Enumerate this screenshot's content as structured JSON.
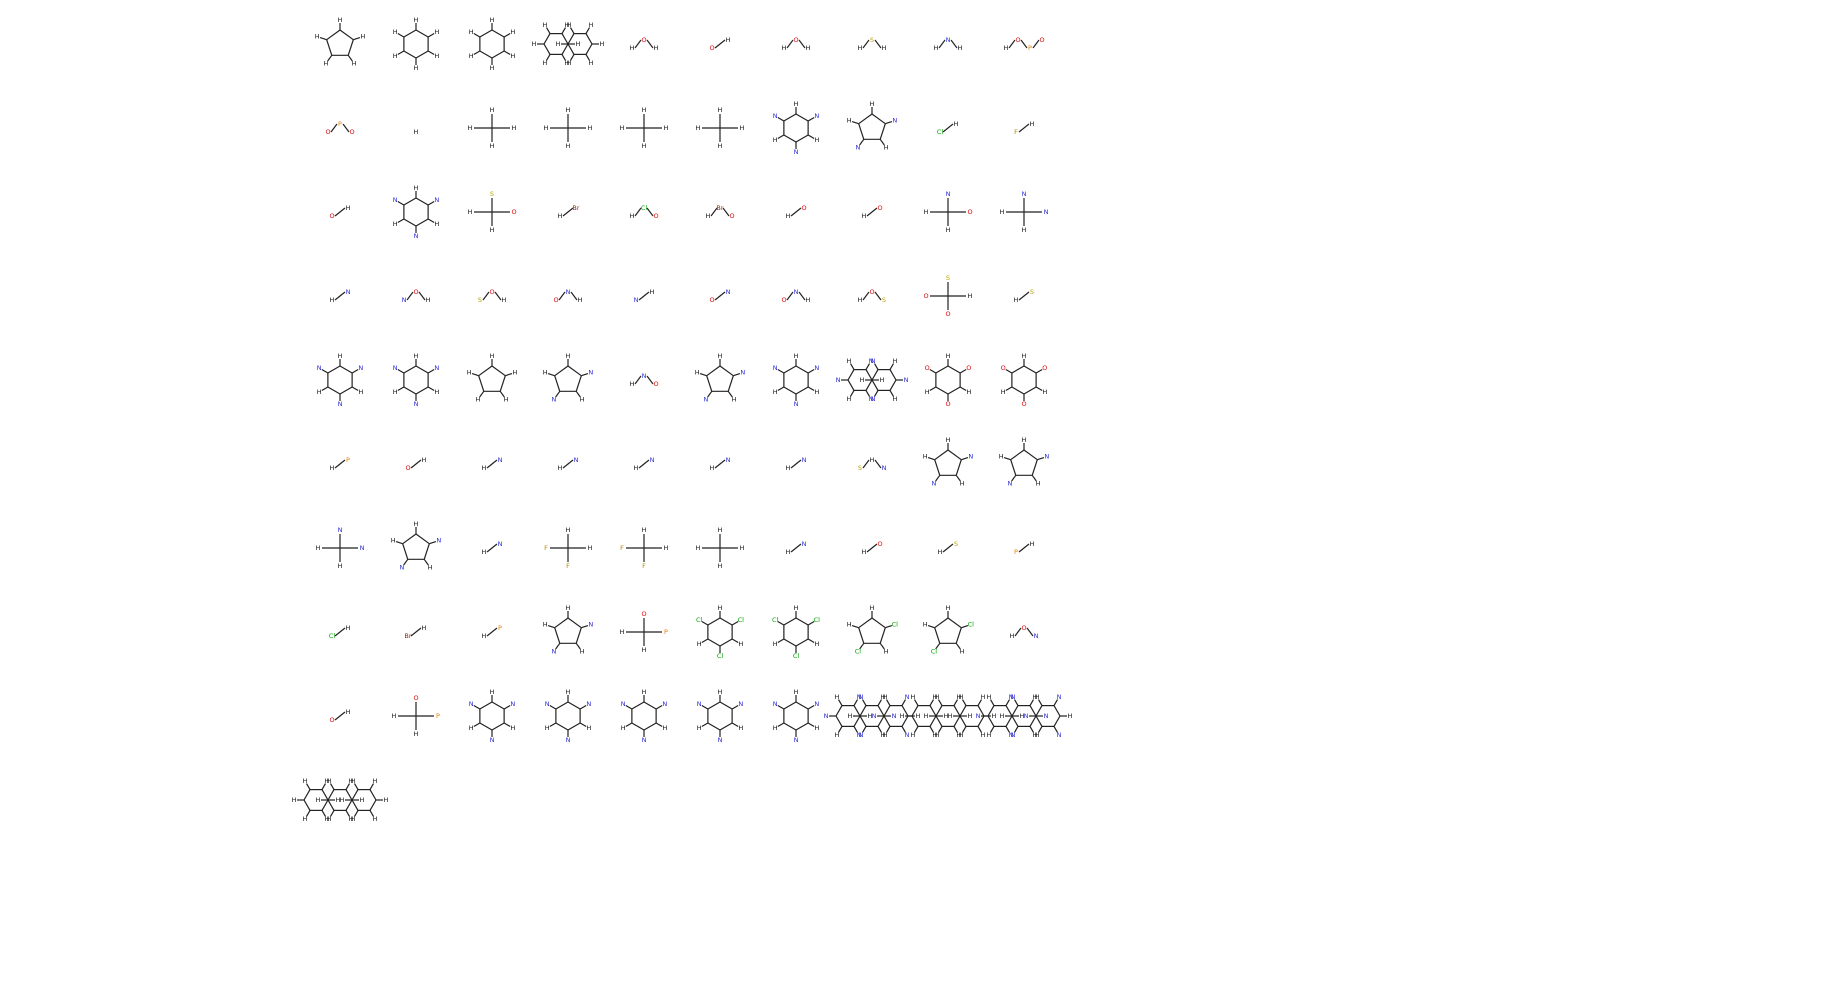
{
  "colors": {
    "bond": "#222222",
    "H": "#111111",
    "C": "#111111",
    "O": "#e00000",
    "N": "#2b2bd6",
    "S": "#b8a100",
    "P": "#e08000",
    "F": "#b08800",
    "Cl": "#00a000",
    "Br": "#8a2a0a"
  },
  "rows": [
    [
      {
        "name": "cyclopentane",
        "shape": "ring5",
        "labels": [
          "H"
        ]
      },
      {
        "name": "cyclohexane",
        "shape": "ring6",
        "labels": [
          "H"
        ]
      },
      {
        "name": "benzene",
        "shape": "ring6",
        "labels": [
          "H"
        ]
      },
      {
        "name": "naphthalene",
        "shape": "ring6x2",
        "labels": [
          "H"
        ]
      },
      {
        "name": "methanol",
        "shape": "chain",
        "labels": [
          "H",
          "O",
          "H"
        ]
      },
      {
        "name": "acetone",
        "shape": "chain",
        "labels": [
          "O",
          "H"
        ]
      },
      {
        "name": "acetic-acid",
        "shape": "chain",
        "labels": [
          "H",
          "O",
          "H"
        ]
      },
      {
        "name": "methanethiol",
        "shape": "chain",
        "labels": [
          "H",
          "S",
          "H"
        ]
      },
      {
        "name": "ammonia",
        "shape": "chain",
        "labels": [
          "H",
          "N",
          "H"
        ]
      },
      {
        "name": "methyl-phosphate",
        "shape": "chain",
        "labels": [
          "H",
          "O",
          "P",
          "O"
        ]
      }
    ],
    [
      {
        "name": "methylphosphonate",
        "shape": "chain",
        "labels": [
          "O",
          "P",
          "O"
        ]
      },
      {
        "name": "ethane",
        "shape": "chain",
        "labels": [
          "H"
        ]
      },
      {
        "name": "isobutane",
        "shape": "branch",
        "labels": [
          "H"
        ]
      },
      {
        "name": "neopentane",
        "shape": "branch",
        "labels": [
          "H"
        ]
      },
      {
        "name": "branched-alkane-a",
        "shape": "branch",
        "labels": [
          "H"
        ]
      },
      {
        "name": "branched-alkane-b",
        "shape": "branch",
        "labels": [
          "H"
        ]
      },
      {
        "name": "pyridine",
        "shape": "ring6",
        "labels": [
          "H",
          "N"
        ]
      },
      {
        "name": "pyrrolidine",
        "shape": "ring5",
        "labels": [
          "H",
          "N"
        ]
      },
      {
        "name": "chloromethane",
        "shape": "chain",
        "labels": [
          "Cl",
          "H"
        ]
      },
      {
        "name": "fluoromethane",
        "shape": "chain",
        "labels": [
          "F",
          "H"
        ]
      }
    ],
    [
      {
        "name": "formaldehyde",
        "shape": "chain",
        "labels": [
          "O",
          "H"
        ]
      },
      {
        "name": "piperidine",
        "shape": "ring6",
        "labels": [
          "H",
          "N"
        ]
      },
      {
        "name": "dimethyl-sulfone",
        "shape": "branch",
        "labels": [
          "H",
          "S",
          "O"
        ]
      },
      {
        "name": "bromomethane",
        "shape": "chain",
        "labels": [
          "H",
          "Br"
        ]
      },
      {
        "name": "acetyl-chloride",
        "shape": "chain",
        "labels": [
          "H",
          "Cl",
          "O"
        ]
      },
      {
        "name": "acetyl-bromide",
        "shape": "chain",
        "labels": [
          "H",
          "Br",
          "O"
        ]
      },
      {
        "name": "dimethyl-ether",
        "shape": "chain",
        "labels": [
          "H",
          "O"
        ]
      },
      {
        "name": "diethyl-ether",
        "shape": "chain",
        "labels": [
          "H",
          "O"
        ]
      },
      {
        "name": "dimethylacetamide",
        "shape": "branch",
        "labels": [
          "H",
          "N",
          "O"
        ]
      },
      {
        "name": "acetone-imine",
        "shape": "branch",
        "labels": [
          "H",
          "N"
        ]
      }
    ],
    [
      {
        "name": "azomethane",
        "shape": "chain",
        "labels": [
          "H",
          "N"
        ]
      },
      {
        "name": "methyl-cyanate",
        "shape": "chain",
        "labels": [
          "N",
          "O",
          "H"
        ]
      },
      {
        "name": "thioformate",
        "shape": "chain",
        "labels": [
          "S",
          "O",
          "H"
        ]
      },
      {
        "name": "nitric-acid",
        "shape": "chain",
        "labels": [
          "O",
          "N",
          "H"
        ]
      },
      {
        "name": "hydrogen-cyanide",
        "shape": "chain",
        "labels": [
          "N",
          "H"
        ]
      },
      {
        "name": "nitrite",
        "shape": "chain",
        "labels": [
          "O",
          "N"
        ]
      },
      {
        "name": "nitroxyl",
        "shape": "chain",
        "labels": [
          "O",
          "N",
          "H"
        ]
      },
      {
        "name": "sulfurous-acid",
        "shape": "chain",
        "labels": [
          "H",
          "O",
          "S"
        ]
      },
      {
        "name": "dimethyl-sulfoxide",
        "shape": "branch",
        "labels": [
          "O",
          "S",
          "H"
        ]
      },
      {
        "name": "dimethyl-disulfide",
        "shape": "chain",
        "labels": [
          "H",
          "S"
        ]
      }
    ],
    [
      {
        "name": "hexahydropyrimidine",
        "shape": "ring6",
        "labels": [
          "H",
          "N"
        ]
      },
      {
        "name": "pyrimidine",
        "shape": "ring6",
        "labels": [
          "H",
          "N"
        ]
      },
      {
        "name": "cyclopentadiene",
        "shape": "ring5",
        "labels": [
          "H"
        ]
      },
      {
        "name": "pyrrole-2h",
        "shape": "ring5",
        "labels": [
          "H",
          "N"
        ]
      },
      {
        "name": "acetimidate",
        "shape": "chain",
        "labels": [
          "H",
          "N",
          "O"
        ]
      },
      {
        "name": "triazole",
        "shape": "ring5",
        "labels": [
          "H",
          "N"
        ]
      },
      {
        "name": "triazine",
        "shape": "ring6",
        "labels": [
          "H",
          "N"
        ]
      },
      {
        "name": "pyrimidopyrimidine",
        "shape": "ring6x2",
        "labels": [
          "H",
          "N"
        ]
      },
      {
        "name": "phenol",
        "shape": "ring6",
        "labels": [
          "H",
          "O"
        ]
      },
      {
        "name": "catechol",
        "shape": "ring6",
        "labels": [
          "H",
          "O"
        ]
      }
    ],
    [
      {
        "name": "methylphosphonium",
        "shape": "chain",
        "labels": [
          "H",
          "P"
        ]
      },
      {
        "name": "formate",
        "shape": "chain",
        "labels": [
          "O",
          "H"
        ]
      },
      {
        "name": "ammonium-a",
        "shape": "chain",
        "labels": [
          "H",
          "N"
        ]
      },
      {
        "name": "ammonium-b",
        "shape": "chain",
        "labels": [
          "H",
          "N"
        ]
      },
      {
        "name": "ammonium-c",
        "shape": "chain",
        "labels": [
          "H",
          "N"
        ]
      },
      {
        "name": "diazene",
        "shape": "chain",
        "labels": [
          "H",
          "N"
        ]
      },
      {
        "name": "methylamine",
        "shape": "chain",
        "labels": [
          "H",
          "N"
        ]
      },
      {
        "name": "thioformamide",
        "shape": "chain",
        "labels": [
          "S",
          "H",
          "N"
        ]
      },
      {
        "name": "aminocyclopentadiene",
        "shape": "ring5",
        "labels": [
          "H",
          "N"
        ]
      },
      {
        "name": "diaminopyrrole",
        "shape": "ring5",
        "labels": [
          "H",
          "N"
        ]
      }
    ],
    [
      {
        "name": "enamine",
        "shape": "branch",
        "labels": [
          "H",
          "N"
        ]
      },
      {
        "name": "tetraaminotriazolium",
        "shape": "ring5",
        "labels": [
          "H",
          "N"
        ]
      },
      {
        "name": "formamidine",
        "shape": "chain",
        "labels": [
          "H",
          "N"
        ]
      },
      {
        "name": "fluoroform",
        "shape": "branch",
        "labels": [
          "F",
          "H"
        ]
      },
      {
        "name": "difluoromethane",
        "shape": "branch",
        "labels": [
          "F",
          "H"
        ]
      },
      {
        "name": "methane",
        "shape": "branch",
        "labels": [
          "H"
        ]
      },
      {
        "name": "ammonia-b",
        "shape": "chain",
        "labels": [
          "H",
          "N"
        ]
      },
      {
        "name": "water",
        "shape": "chain",
        "labels": [
          "H",
          "O"
        ]
      },
      {
        "name": "hydrogen-sulfide",
        "shape": "chain",
        "labels": [
          "H",
          "S"
        ]
      },
      {
        "name": "phosphine",
        "shape": "chain",
        "labels": [
          "P",
          "H"
        ]
      }
    ],
    [
      {
        "name": "hydrogen-chloride",
        "shape": "chain",
        "labels": [
          "Cl",
          "H"
        ]
      },
      {
        "name": "hydrogen-bromide",
        "shape": "chain",
        "labels": [
          "Br",
          "H"
        ]
      },
      {
        "name": "phosphine-b",
        "shape": "chain",
        "labels": [
          "H",
          "P"
        ]
      },
      {
        "name": "triazoline",
        "shape": "ring5",
        "labels": [
          "H",
          "N"
        ]
      },
      {
        "name": "methylphosphonic-acid",
        "shape": "branch",
        "labels": [
          "H",
          "O",
          "P"
        ]
      },
      {
        "name": "chlorobenzene",
        "shape": "ring6",
        "labels": [
          "H",
          "Cl"
        ]
      },
      {
        "name": "dichlorobenzene",
        "shape": "ring6",
        "labels": [
          "H",
          "Cl"
        ]
      },
      {
        "name": "chlorocyclopentadiene",
        "shape": "ring5",
        "labels": [
          "H",
          "Cl"
        ]
      },
      {
        "name": "dichlorocyclopentadiene",
        "shape": "ring5",
        "labels": [
          "H",
          "Cl"
        ]
      },
      {
        "name": "nitrous-acid",
        "shape": "chain",
        "labels": [
          "H",
          "O",
          "N"
        ]
      }
    ],
    [
      {
        "name": "formic-acid",
        "shape": "chain",
        "labels": [
          "O",
          "H"
        ]
      },
      {
        "name": "methylphosphonate-ester",
        "shape": "branch",
        "labels": [
          "H",
          "O",
          "P"
        ]
      },
      {
        "name": "aniline",
        "shape": "ring6",
        "labels": [
          "H",
          "N"
        ]
      },
      {
        "name": "triaminobenzene",
        "shape": "ring6",
        "labels": [
          "H",
          "N"
        ]
      },
      {
        "name": "tetraaminobenzene",
        "shape": "ring6",
        "labels": [
          "H",
          "N"
        ]
      },
      {
        "name": "n-methylaniline",
        "shape": "ring6",
        "labels": [
          "H",
          "N"
        ]
      },
      {
        "name": "phenylguanidine",
        "shape": "ring6",
        "labels": [
          "H",
          "N"
        ]
      },
      {
        "name": "tetraazaanthracene-large",
        "shape": "ring6x3",
        "labels": [
          "H",
          "N"
        ]
      },
      {
        "name": "anthracene",
        "shape": "ring6x3",
        "labels": [
          "H"
        ]
      },
      {
        "name": "tetraazaphenanthrene",
        "shape": "ring6x3",
        "labels": [
          "H",
          "N"
        ]
      }
    ],
    [
      {
        "name": "phenanthrene",
        "shape": "ring6x3",
        "labels": [
          "H"
        ]
      }
    ]
  ]
}
